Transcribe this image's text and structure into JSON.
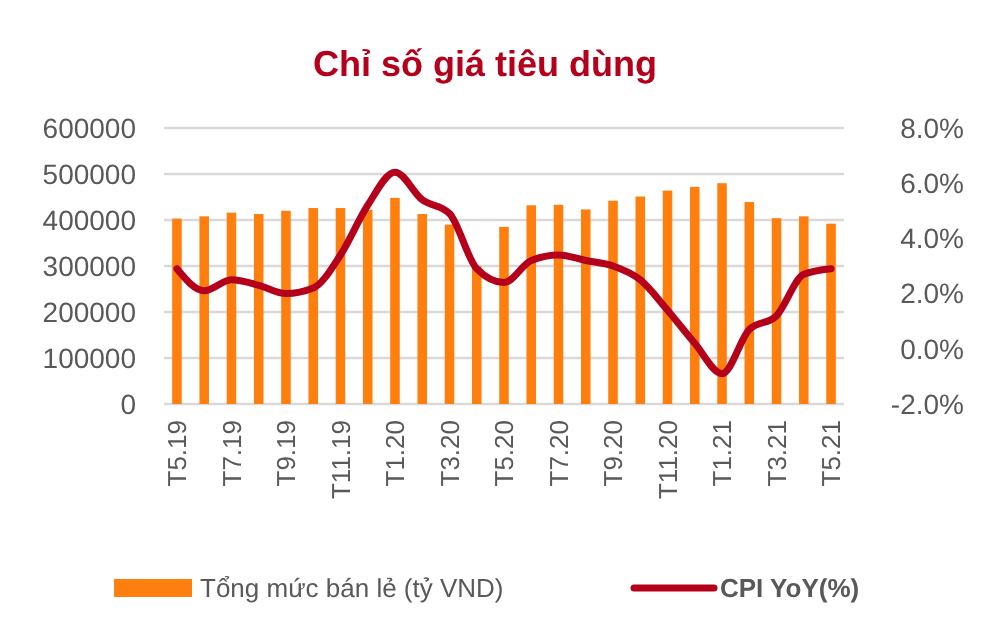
{
  "chart_data": {
    "type": "bar",
    "title": "Chỉ số giá tiêu dùng",
    "categories": [
      "T5.19",
      null,
      "T7.19",
      null,
      "T9.19",
      null,
      "T11.19",
      null,
      "T1.20",
      null,
      "T3.20",
      null,
      "T5.20",
      null,
      "T7.20",
      null,
      "T9.20",
      null,
      "T11.20",
      null,
      "T1.21",
      null,
      "T3.21",
      null,
      "T5.21"
    ],
    "series": [
      {
        "name": "Tổng mức bán lẻ (tỷ VND)",
        "color": "#ff7f0e",
        "values": [
          403000,
          408000,
          416000,
          413000,
          420000,
          426000,
          426000,
          422000,
          448000,
          413000,
          390000,
          300000,
          385000,
          432000,
          433000,
          423000,
          442000,
          451000,
          464000,
          472000,
          480000,
          439000,
          404000,
          408000,
          392000
        ]
      },
      {
        "name": "CPI YoY(%)",
        "type": "line",
        "axis": "y2",
        "color": "#b5001b",
        "values": [
          2.9,
          2.1,
          2.5,
          2.3,
          2.0,
          2.2,
          3.4,
          5.2,
          6.4,
          5.4,
          4.9,
          2.9,
          2.4,
          3.2,
          3.4,
          3.2,
          3.0,
          2.5,
          1.4,
          0.2,
          -0.9,
          0.7,
          1.2,
          2.7,
          2.9
        ]
      }
    ],
    "ylim": [
      0,
      600000
    ],
    "yticks": [
      0,
      100000,
      200000,
      300000,
      400000,
      500000,
      600000
    ],
    "y2lim": [
      -2,
      8
    ],
    "y2ticks": [
      {
        "value": -2,
        "label": "-2.0%"
      },
      {
        "value": 0,
        "label": "0.0%"
      },
      {
        "value": 2,
        "label": "2.0%"
      },
      {
        "value": 4,
        "label": "4.0%"
      },
      {
        "value": 6,
        "label": "6.0%"
      },
      {
        "value": 8,
        "label": "8.0%"
      }
    ],
    "grid": "y",
    "legend": "bottom",
    "marker": "none",
    "line_style": "solid"
  }
}
